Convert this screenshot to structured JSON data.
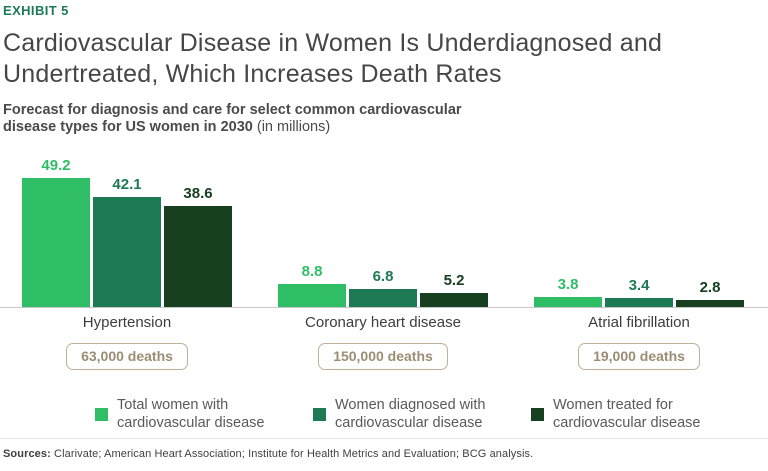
{
  "exhibit_label": "EXHIBIT 5",
  "title": {
    "line1": "Cardiovascular Disease in Women Is Underdiagnosed and",
    "line2": "Undertreated, Which Increases Death Rates",
    "full": "Cardiovascular Disease in Women Is Underdiagnosed and Undertreated, Which Increases Death Rates"
  },
  "subtitle": {
    "line1": "Forecast for diagnosis and care for select common cardiovascular",
    "line2_bold": "disease types for US women in 2030 ",
    "line2_note": "(in millions)"
  },
  "chart_data": {
    "type": "bar",
    "categories": [
      "Hypertension",
      "Coronary heart disease",
      "Atrial fibrillation"
    ],
    "series": [
      {
        "name": "Total women with cardiovascular disease",
        "color": "#2fbe66",
        "values": [
          49.2,
          8.8,
          3.8
        ]
      },
      {
        "name": "Women diagnosed with cardiovascular disease",
        "color": "#1e7a55",
        "values": [
          42.1,
          6.8,
          3.4
        ]
      },
      {
        "name": "Women treated for cardiovascular disease",
        "color": "#16401f",
        "values": [
          38.6,
          5.2,
          2.8
        ]
      }
    ],
    "deaths_badges": [
      "63,000 deaths",
      "150,000 deaths",
      "19,000 deaths"
    ],
    "value_label_format": "one_decimal",
    "ylim": [
      0,
      52
    ],
    "grid": false,
    "legend_position": "bottom",
    "unit": "millions of US women, 2030 forecast"
  },
  "footer": {
    "sources_label": "Sources:",
    "sources_text": " Clarivate; American Heart Association; Institute for Health Metrics and Evaluation; BCG analysis."
  },
  "colors": {
    "accent_green": "#1e7a55",
    "light_green": "#2fbe66",
    "medium_green": "#1e7a55",
    "dark_green": "#16401f",
    "badge_border": "#bfb098",
    "badge_text": "#9c8c74",
    "axis": "#c8c8c8",
    "title_text": "#464646"
  }
}
